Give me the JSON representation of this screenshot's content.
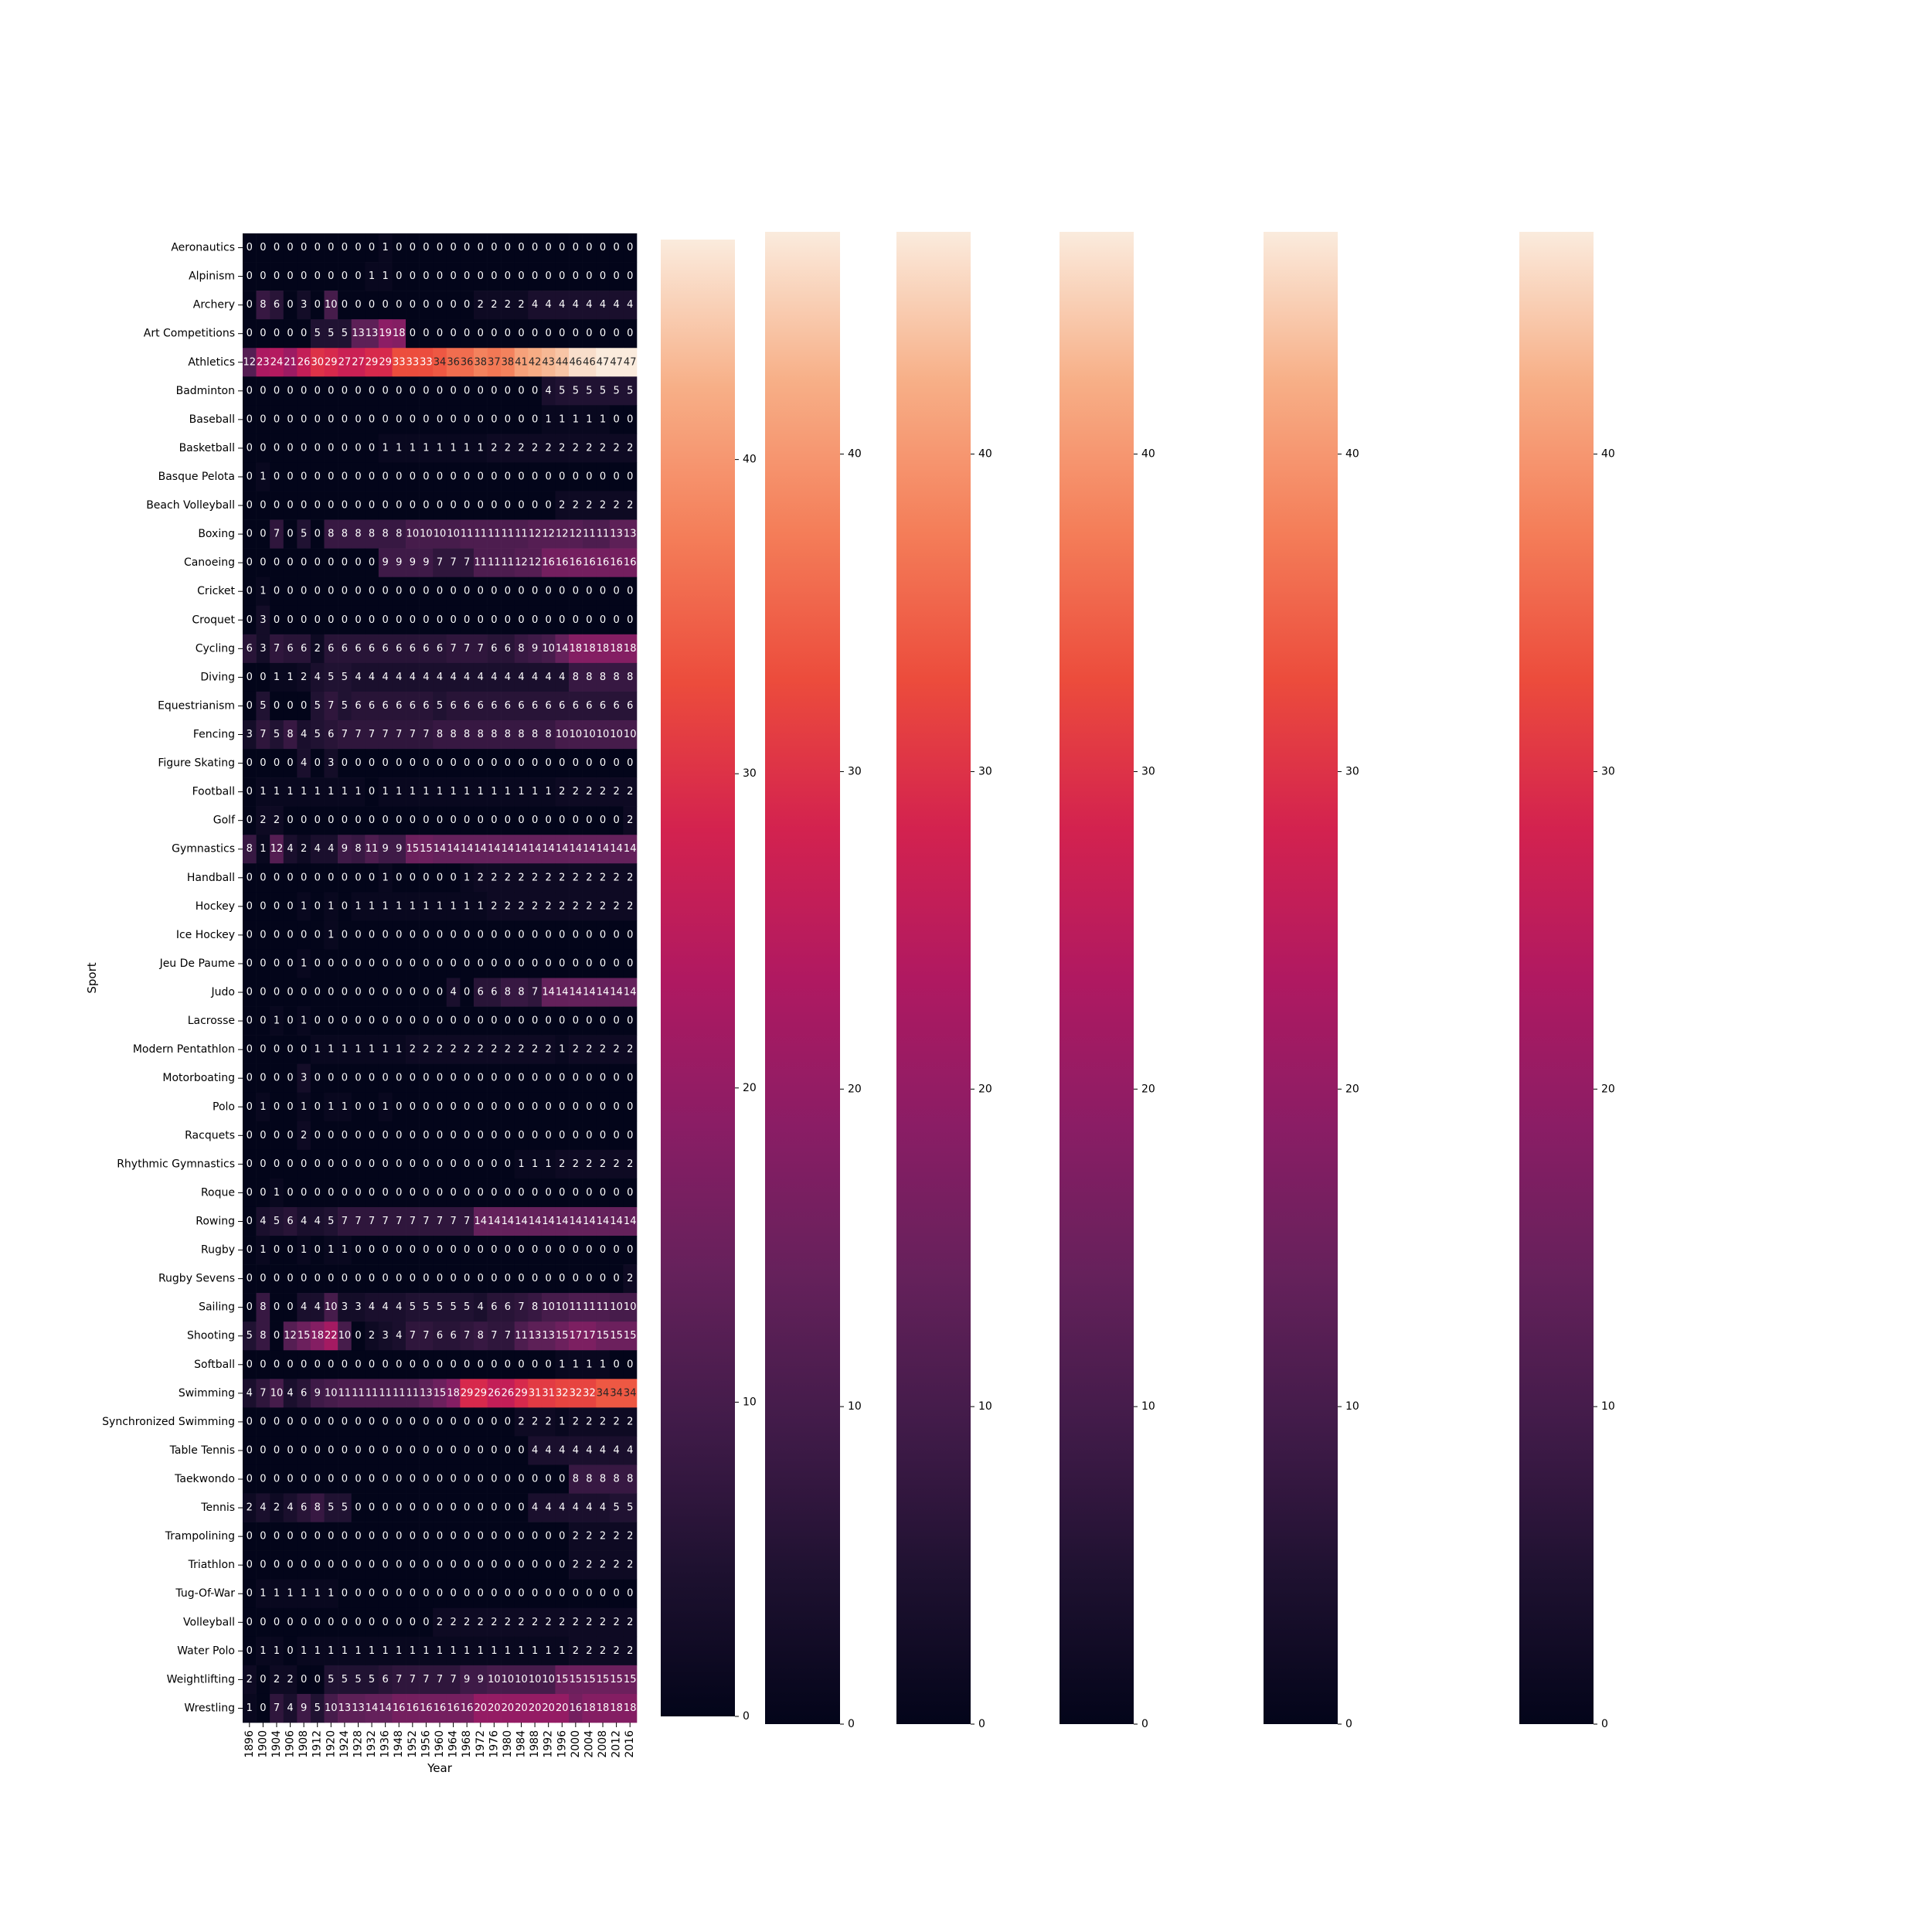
{
  "chart_data": {
    "type": "heatmap",
    "xlabel": "Year",
    "ylabel": "Sport",
    "x": [
      "1896",
      "1900",
      "1904",
      "1906",
      "1908",
      "1912",
      "1920",
      "1924",
      "1928",
      "1932",
      "1936",
      "1948",
      "1952",
      "1956",
      "1960",
      "1964",
      "1968",
      "1972",
      "1976",
      "1980",
      "1984",
      "1988",
      "1992",
      "1996",
      "2000",
      "2004",
      "2008",
      "2012",
      "2016"
    ],
    "y": [
      "Aeronautics",
      "Alpinism",
      "Archery",
      "Art Competitions",
      "Athletics",
      "Badminton",
      "Baseball",
      "Basketball",
      "Basque Pelota",
      "Beach Volleyball",
      "Boxing",
      "Canoeing",
      "Cricket",
      "Croquet",
      "Cycling",
      "Diving",
      "Equestrianism",
      "Fencing",
      "Figure Skating",
      "Football",
      "Golf",
      "Gymnastics",
      "Handball",
      "Hockey",
      "Ice Hockey",
      "Jeu De Paume",
      "Judo",
      "Lacrosse",
      "Modern Pentathlon",
      "Motorboating",
      "Polo",
      "Racquets",
      "Rhythmic Gymnastics",
      "Roque",
      "Rowing",
      "Rugby",
      "Rugby Sevens",
      "Sailing",
      "Shooting",
      "Softball",
      "Swimming",
      "Synchronized Swimming",
      "Table Tennis",
      "Taekwondo",
      "Tennis",
      "Trampolining",
      "Triathlon",
      "Tug-Of-War",
      "Volleyball",
      "Water Polo",
      "Weightlifting",
      "Wrestling"
    ],
    "values": [
      [
        0,
        0,
        0,
        0,
        0,
        0,
        0,
        0,
        0,
        0,
        1,
        0,
        0,
        0,
        0,
        0,
        0,
        0,
        0,
        0,
        0,
        0,
        0,
        0,
        0,
        0,
        0,
        0,
        0
      ],
      [
        0,
        0,
        0,
        0,
        0,
        0,
        0,
        0,
        0,
        1,
        1,
        0,
        0,
        0,
        0,
        0,
        0,
        0,
        0,
        0,
        0,
        0,
        0,
        0,
        0,
        0,
        0,
        0,
        0
      ],
      [
        0,
        8,
        6,
        0,
        3,
        0,
        10,
        0,
        0,
        0,
        0,
        0,
        0,
        0,
        0,
        0,
        0,
        2,
        2,
        2,
        2,
        4,
        4,
        4,
        4,
        4,
        4,
        4,
        4
      ],
      [
        0,
        0,
        0,
        0,
        0,
        5,
        5,
        5,
        13,
        13,
        19,
        18,
        0,
        0,
        0,
        0,
        0,
        0,
        0,
        0,
        0,
        0,
        0,
        0,
        0,
        0,
        0,
        0,
        0
      ],
      [
        12,
        23,
        24,
        21,
        26,
        30,
        29,
        27,
        27,
        29,
        29,
        33,
        33,
        33,
        34,
        36,
        36,
        38,
        37,
        38,
        41,
        42,
        43,
        44,
        46,
        46,
        47,
        47,
        47
      ],
      [
        0,
        0,
        0,
        0,
        0,
        0,
        0,
        0,
        0,
        0,
        0,
        0,
        0,
        0,
        0,
        0,
        0,
        0,
        0,
        0,
        0,
        0,
        4,
        5,
        5,
        5,
        5,
        5,
        5
      ],
      [
        0,
        0,
        0,
        0,
        0,
        0,
        0,
        0,
        0,
        0,
        0,
        0,
        0,
        0,
        0,
        0,
        0,
        0,
        0,
        0,
        0,
        0,
        1,
        1,
        1,
        1,
        1,
        0,
        0
      ],
      [
        0,
        0,
        0,
        0,
        0,
        0,
        0,
        0,
        0,
        0,
        1,
        1,
        1,
        1,
        1,
        1,
        1,
        1,
        2,
        2,
        2,
        2,
        2,
        2,
        2,
        2,
        2,
        2,
        2
      ],
      [
        0,
        1,
        0,
        0,
        0,
        0,
        0,
        0,
        0,
        0,
        0,
        0,
        0,
        0,
        0,
        0,
        0,
        0,
        0,
        0,
        0,
        0,
        0,
        0,
        0,
        0,
        0,
        0,
        0
      ],
      [
        0,
        0,
        0,
        0,
        0,
        0,
        0,
        0,
        0,
        0,
        0,
        0,
        0,
        0,
        0,
        0,
        0,
        0,
        0,
        0,
        0,
        0,
        0,
        2,
        2,
        2,
        2,
        2,
        2
      ],
      [
        0,
        0,
        7,
        0,
        5,
        0,
        8,
        8,
        8,
        8,
        8,
        8,
        10,
        10,
        10,
        10,
        11,
        11,
        11,
        11,
        11,
        12,
        12,
        12,
        12,
        11,
        11,
        13,
        13
      ],
      [
        0,
        0,
        0,
        0,
        0,
        0,
        0,
        0,
        0,
        0,
        9,
        9,
        9,
        9,
        7,
        7,
        7,
        11,
        11,
        11,
        12,
        12,
        16,
        16,
        16,
        16,
        16,
        16,
        16
      ],
      [
        0,
        1,
        0,
        0,
        0,
        0,
        0,
        0,
        0,
        0,
        0,
        0,
        0,
        0,
        0,
        0,
        0,
        0,
        0,
        0,
        0,
        0,
        0,
        0,
        0,
        0,
        0,
        0,
        0
      ],
      [
        0,
        3,
        0,
        0,
        0,
        0,
        0,
        0,
        0,
        0,
        0,
        0,
        0,
        0,
        0,
        0,
        0,
        0,
        0,
        0,
        0,
        0,
        0,
        0,
        0,
        0,
        0,
        0,
        0
      ],
      [
        6,
        3,
        7,
        6,
        6,
        2,
        6,
        6,
        6,
        6,
        6,
        6,
        6,
        6,
        6,
        7,
        7,
        7,
        6,
        6,
        8,
        9,
        10,
        14,
        18,
        18,
        18,
        18,
        18
      ],
      [
        0,
        0,
        1,
        1,
        2,
        4,
        5,
        5,
        4,
        4,
        4,
        4,
        4,
        4,
        4,
        4,
        4,
        4,
        4,
        4,
        4,
        4,
        4,
        4,
        8,
        8,
        8,
        8,
        8
      ],
      [
        0,
        5,
        0,
        0,
        0,
        5,
        7,
        5,
        6,
        6,
        6,
        6,
        6,
        6,
        5,
        6,
        6,
        6,
        6,
        6,
        6,
        6,
        6,
        6,
        6,
        6,
        6,
        6,
        6
      ],
      [
        3,
        7,
        5,
        8,
        4,
        5,
        6,
        7,
        7,
        7,
        7,
        7,
        7,
        7,
        8,
        8,
        8,
        8,
        8,
        8,
        8,
        8,
        8,
        10,
        10,
        10,
        10,
        10,
        10
      ],
      [
        0,
        0,
        0,
        0,
        4,
        0,
        3,
        0,
        0,
        0,
        0,
        0,
        0,
        0,
        0,
        0,
        0,
        0,
        0,
        0,
        0,
        0,
        0,
        0,
        0,
        0,
        0,
        0,
        0
      ],
      [
        0,
        1,
        1,
        1,
        1,
        1,
        1,
        1,
        1,
        0,
        1,
        1,
        1,
        1,
        1,
        1,
        1,
        1,
        1,
        1,
        1,
        1,
        1,
        2,
        2,
        2,
        2,
        2,
        2
      ],
      [
        0,
        2,
        2,
        0,
        0,
        0,
        0,
        0,
        0,
        0,
        0,
        0,
        0,
        0,
        0,
        0,
        0,
        0,
        0,
        0,
        0,
        0,
        0,
        0,
        0,
        0,
        0,
        0,
        2
      ],
      [
        8,
        1,
        12,
        4,
        2,
        4,
        4,
        9,
        8,
        11,
        9,
        9,
        15,
        15,
        14,
        14,
        14,
        14,
        14,
        14,
        14,
        14,
        14,
        14,
        14,
        14,
        14,
        14,
        14
      ],
      [
        0,
        0,
        0,
        0,
        0,
        0,
        0,
        0,
        0,
        0,
        1,
        0,
        0,
        0,
        0,
        0,
        1,
        2,
        2,
        2,
        2,
        2,
        2,
        2,
        2,
        2,
        2,
        2,
        2
      ],
      [
        0,
        0,
        0,
        0,
        1,
        0,
        1,
        0,
        1,
        1,
        1,
        1,
        1,
        1,
        1,
        1,
        1,
        1,
        2,
        2,
        2,
        2,
        2,
        2,
        2,
        2,
        2,
        2,
        2
      ],
      [
        0,
        0,
        0,
        0,
        0,
        0,
        1,
        0,
        0,
        0,
        0,
        0,
        0,
        0,
        0,
        0,
        0,
        0,
        0,
        0,
        0,
        0,
        0,
        0,
        0,
        0,
        0,
        0,
        0
      ],
      [
        0,
        0,
        0,
        0,
        1,
        0,
        0,
        0,
        0,
        0,
        0,
        0,
        0,
        0,
        0,
        0,
        0,
        0,
        0,
        0,
        0,
        0,
        0,
        0,
        0,
        0,
        0,
        0,
        0
      ],
      [
        0,
        0,
        0,
        0,
        0,
        0,
        0,
        0,
        0,
        0,
        0,
        0,
        0,
        0,
        0,
        4,
        0,
        6,
        6,
        8,
        8,
        7,
        14,
        14,
        14,
        14,
        14,
        14,
        14
      ],
      [
        0,
        0,
        1,
        0,
        1,
        0,
        0,
        0,
        0,
        0,
        0,
        0,
        0,
        0,
        0,
        0,
        0,
        0,
        0,
        0,
        0,
        0,
        0,
        0,
        0,
        0,
        0,
        0,
        0
      ],
      [
        0,
        0,
        0,
        0,
        0,
        1,
        1,
        1,
        1,
        1,
        1,
        1,
        2,
        2,
        2,
        2,
        2,
        2,
        2,
        2,
        2,
        2,
        2,
        1,
        2,
        2,
        2,
        2,
        2
      ],
      [
        0,
        0,
        0,
        0,
        3,
        0,
        0,
        0,
        0,
        0,
        0,
        0,
        0,
        0,
        0,
        0,
        0,
        0,
        0,
        0,
        0,
        0,
        0,
        0,
        0,
        0,
        0,
        0,
        0
      ],
      [
        0,
        1,
        0,
        0,
        1,
        0,
        1,
        1,
        0,
        0,
        1,
        0,
        0,
        0,
        0,
        0,
        0,
        0,
        0,
        0,
        0,
        0,
        0,
        0,
        0,
        0,
        0,
        0,
        0
      ],
      [
        0,
        0,
        0,
        0,
        2,
        0,
        0,
        0,
        0,
        0,
        0,
        0,
        0,
        0,
        0,
        0,
        0,
        0,
        0,
        0,
        0,
        0,
        0,
        0,
        0,
        0,
        0,
        0,
        0
      ],
      [
        0,
        0,
        0,
        0,
        0,
        0,
        0,
        0,
        0,
        0,
        0,
        0,
        0,
        0,
        0,
        0,
        0,
        0,
        0,
        0,
        1,
        1,
        1,
        2,
        2,
        2,
        2,
        2,
        2
      ],
      [
        0,
        0,
        1,
        0,
        0,
        0,
        0,
        0,
        0,
        0,
        0,
        0,
        0,
        0,
        0,
        0,
        0,
        0,
        0,
        0,
        0,
        0,
        0,
        0,
        0,
        0,
        0,
        0,
        0
      ],
      [
        0,
        4,
        5,
        6,
        4,
        4,
        5,
        7,
        7,
        7,
        7,
        7,
        7,
        7,
        7,
        7,
        7,
        14,
        14,
        14,
        14,
        14,
        14,
        14,
        14,
        14,
        14,
        14,
        14
      ],
      [
        0,
        1,
        0,
        0,
        1,
        0,
        1,
        1,
        0,
        0,
        0,
        0,
        0,
        0,
        0,
        0,
        0,
        0,
        0,
        0,
        0,
        0,
        0,
        0,
        0,
        0,
        0,
        0,
        0
      ],
      [
        0,
        0,
        0,
        0,
        0,
        0,
        0,
        0,
        0,
        0,
        0,
        0,
        0,
        0,
        0,
        0,
        0,
        0,
        0,
        0,
        0,
        0,
        0,
        0,
        0,
        0,
        0,
        0,
        2
      ],
      [
        0,
        8,
        0,
        0,
        4,
        4,
        10,
        3,
        3,
        4,
        4,
        4,
        5,
        5,
        5,
        5,
        5,
        4,
        6,
        6,
        7,
        8,
        10,
        10,
        11,
        11,
        11,
        10,
        10
      ],
      [
        5,
        8,
        0,
        12,
        15,
        18,
        22,
        10,
        0,
        2,
        3,
        4,
        7,
        7,
        6,
        6,
        7,
        8,
        7,
        7,
        11,
        13,
        13,
        15,
        17,
        17,
        15,
        15,
        15
      ],
      [
        0,
        0,
        0,
        0,
        0,
        0,
        0,
        0,
        0,
        0,
        0,
        0,
        0,
        0,
        0,
        0,
        0,
        0,
        0,
        0,
        0,
        0,
        0,
        1,
        1,
        1,
        1,
        0,
        0
      ],
      [
        4,
        7,
        10,
        4,
        6,
        9,
        10,
        11,
        11,
        11,
        11,
        11,
        11,
        13,
        15,
        18,
        29,
        29,
        26,
        26,
        29,
        31,
        31,
        32,
        32,
        32,
        34,
        34,
        34
      ],
      [
        0,
        0,
        0,
        0,
        0,
        0,
        0,
        0,
        0,
        0,
        0,
        0,
        0,
        0,
        0,
        0,
        0,
        0,
        0,
        0,
        2,
        2,
        2,
        1,
        2,
        2,
        2,
        2,
        2
      ],
      [
        0,
        0,
        0,
        0,
        0,
        0,
        0,
        0,
        0,
        0,
        0,
        0,
        0,
        0,
        0,
        0,
        0,
        0,
        0,
        0,
        0,
        4,
        4,
        4,
        4,
        4,
        4,
        4,
        4
      ],
      [
        0,
        0,
        0,
        0,
        0,
        0,
        0,
        0,
        0,
        0,
        0,
        0,
        0,
        0,
        0,
        0,
        0,
        0,
        0,
        0,
        0,
        0,
        0,
        0,
        8,
        8,
        8,
        8,
        8
      ],
      [
        2,
        4,
        2,
        4,
        6,
        8,
        5,
        5,
        0,
        0,
        0,
        0,
        0,
        0,
        0,
        0,
        0,
        0,
        0,
        0,
        0,
        4,
        4,
        4,
        4,
        4,
        4,
        5,
        5
      ],
      [
        0,
        0,
        0,
        0,
        0,
        0,
        0,
        0,
        0,
        0,
        0,
        0,
        0,
        0,
        0,
        0,
        0,
        0,
        0,
        0,
        0,
        0,
        0,
        0,
        2,
        2,
        2,
        2,
        2
      ],
      [
        0,
        0,
        0,
        0,
        0,
        0,
        0,
        0,
        0,
        0,
        0,
        0,
        0,
        0,
        0,
        0,
        0,
        0,
        0,
        0,
        0,
        0,
        0,
        0,
        2,
        2,
        2,
        2,
        2
      ],
      [
        0,
        1,
        1,
        1,
        1,
        1,
        1,
        0,
        0,
        0,
        0,
        0,
        0,
        0,
        0,
        0,
        0,
        0,
        0,
        0,
        0,
        0,
        0,
        0,
        0,
        0,
        0,
        0,
        0
      ],
      [
        0,
        0,
        0,
        0,
        0,
        0,
        0,
        0,
        0,
        0,
        0,
        0,
        0,
        0,
        2,
        2,
        2,
        2,
        2,
        2,
        2,
        2,
        2,
        2,
        2,
        2,
        2,
        2,
        2
      ],
      [
        0,
        1,
        1,
        0,
        1,
        1,
        1,
        1,
        1,
        1,
        1,
        1,
        1,
        1,
        1,
        1,
        1,
        1,
        1,
        1,
        1,
        1,
        1,
        1,
        2,
        2,
        2,
        2,
        2
      ],
      [
        2,
        0,
        2,
        2,
        0,
        0,
        5,
        5,
        5,
        5,
        6,
        7,
        7,
        7,
        7,
        7,
        9,
        9,
        10,
        10,
        10,
        10,
        10,
        15,
        15,
        15,
        15,
        15,
        15
      ],
      [
        1,
        0,
        7,
        4,
        9,
        5,
        10,
        13,
        13,
        14,
        14,
        16,
        16,
        16,
        16,
        16,
        16,
        20,
        20,
        20,
        20,
        20,
        20,
        20,
        16,
        18,
        18,
        18,
        18
      ]
    ],
    "vmin": 0,
    "vmax": 47,
    "colormap": "rocket",
    "colorbar_ticks": [
      0,
      10,
      20,
      30,
      40
    ],
    "colorbars": 6
  }
}
